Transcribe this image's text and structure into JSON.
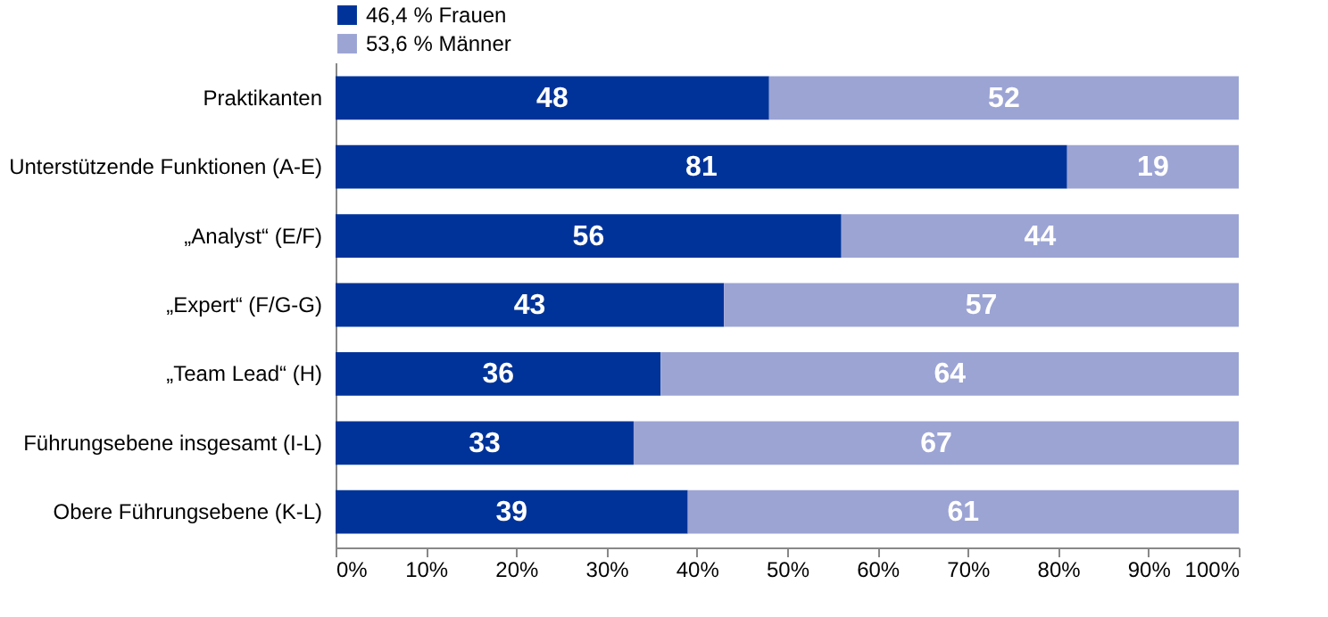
{
  "chart_data": {
    "type": "bar",
    "orientation": "horizontal",
    "stacked": true,
    "categories": [
      "Praktikanten",
      "Unterstützende Funktionen (A-E)",
      "„Analyst“ (E/F)",
      "„Expert“ (F/G-G)",
      "„Team Lead“ (H)",
      "Führungsebene insgesamt (I-L)",
      "Obere Führungsebene (K-L)"
    ],
    "series": [
      {
        "name": "46,4 % Frauen",
        "color": "#003399",
        "values": [
          48,
          81,
          56,
          43,
          36,
          33,
          39
        ]
      },
      {
        "name": "53,6 % Männer",
        "color": "#9ca4d4",
        "values": [
          52,
          19,
          44,
          57,
          64,
          67,
          61
        ]
      }
    ],
    "xlim": [
      0,
      100
    ],
    "xticks": [
      {
        "value": 0,
        "label": "0%"
      },
      {
        "value": 10,
        "label": "10%"
      },
      {
        "value": 20,
        "label": "20%"
      },
      {
        "value": 30,
        "label": "30%"
      },
      {
        "value": 40,
        "label": "40%"
      },
      {
        "value": 50,
        "label": "50%"
      },
      {
        "value": 60,
        "label": "60%"
      },
      {
        "value": 70,
        "label": "70%"
      },
      {
        "value": 80,
        "label": "80%"
      },
      {
        "value": 90,
        "label": "90%"
      },
      {
        "value": 100,
        "label": "100%"
      }
    ],
    "data_labels": true,
    "legend": "top left",
    "grid": false
  }
}
